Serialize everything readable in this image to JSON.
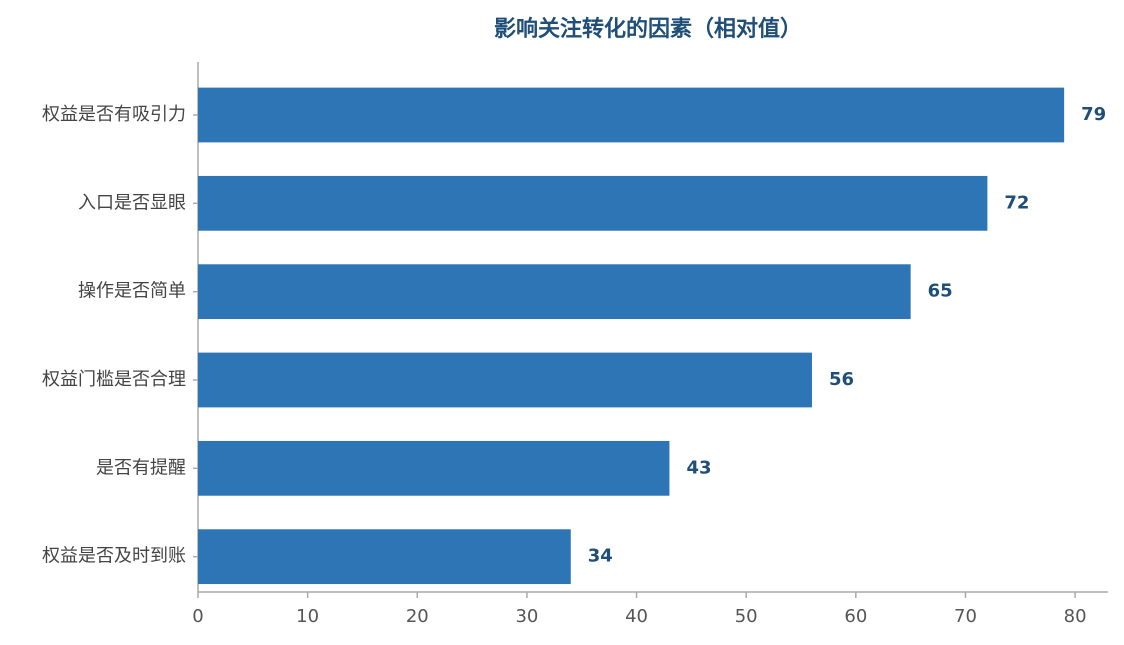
{
  "chart_data": {
    "type": "bar",
    "orientation": "horizontal",
    "title": "影响关注转化的因素（相对值）",
    "categories": [
      "权益是否有吸引力",
      "入口是否显眼",
      "操作是否简单",
      "权益门槛是否合理",
      "是否有提醒",
      "权益是否及时到账"
    ],
    "values": [
      79,
      72,
      65,
      56,
      43,
      34
    ],
    "color": "#2e75b6",
    "xlim": [
      0,
      83
    ],
    "xticks": [
      0,
      10,
      20,
      30,
      40,
      50,
      60,
      70,
      80
    ],
    "grid": false
  }
}
